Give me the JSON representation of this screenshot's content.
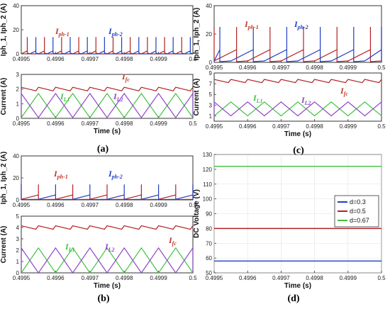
{
  "panel_labels": {
    "a": "(a)",
    "b": "(b)",
    "c": "(c)",
    "d": "(d)"
  },
  "colors": {
    "red": "#c0392b",
    "blue": "#1f3fbf",
    "green": "#3fc33f",
    "purple": "#8e44c8",
    "darkred": "#b22222"
  },
  "chart_data": [
    {
      "id": "a-top",
      "type": "line",
      "ylabel": "Iph_1, Iph_2 (A)",
      "xlabel": "",
      "xlim": [
        0.4995,
        0.5
      ],
      "ylim": [
        0,
        40
      ],
      "xticks": [
        "0.4995",
        "0.4996",
        "0.4997",
        "0.4998",
        "0.4999",
        "0.5"
      ],
      "yticks": [
        "0",
        "20",
        "40"
      ],
      "annotations": [
        {
          "main": "I",
          "sub": "ph-1",
          "color": "red"
        },
        {
          "main": "I",
          "sub": "ph-2",
          "color": "blue"
        }
      ],
      "series": [
        {
          "kind": "pulse",
          "color": "darkred",
          "period": 5e-05,
          "phase": 0.0,
          "base": 2.5,
          "spike": 14
        },
        {
          "kind": "pulse",
          "color": "blue",
          "period": 5e-05,
          "phase": 0.5,
          "base": 2.5,
          "spike": 14
        }
      ]
    },
    {
      "id": "a-bottom",
      "type": "line",
      "ylabel": "Current (A)",
      "xlabel": "Time (s)",
      "xlim": [
        0.4995,
        0.5
      ],
      "ylim": [
        0,
        3
      ],
      "xticks": [
        "0.4995",
        "0.4996",
        "0.4997",
        "0.4998",
        "0.4999",
        "0.5"
      ],
      "yticks": [
        "0",
        "1",
        "2",
        "3"
      ],
      "annotations": [
        {
          "main": "I",
          "sub": "fc",
          "color": "red"
        },
        {
          "main": "I",
          "sub": "L1",
          "color": "green"
        },
        {
          "main": "I",
          "sub": "L2",
          "color": "purple"
        }
      ],
      "series": [
        {
          "kind": "saw",
          "color": "darkred",
          "period": 5e-05,
          "mean": 2.0,
          "amp": 0.12
        },
        {
          "kind": "tri",
          "color": "green",
          "period": 0.0001,
          "phase": 0.0,
          "min": 0.05,
          "max": 1.7
        },
        {
          "kind": "tri",
          "color": "purple",
          "period": 0.0001,
          "phase": 0.5,
          "min": 0.05,
          "max": 1.7
        }
      ]
    },
    {
      "id": "c-top",
      "type": "line",
      "ylabel": "Iph_1, Iph_2 (A)",
      "xlabel": "",
      "xlim": [
        0.4995,
        0.5
      ],
      "ylim": [
        0,
        40
      ],
      "xticks": [
        "0.4995",
        "0.4996",
        "0.4997",
        "0.4998",
        "0.4999",
        "0.5"
      ],
      "yticks": [
        "0",
        "20",
        "40"
      ],
      "annotations": [
        {
          "main": "I",
          "sub": "ph-1",
          "color": "red"
        },
        {
          "main": "I",
          "sub": "ph-2",
          "color": "blue"
        }
      ],
      "series": [
        {
          "kind": "ramp",
          "color": "darkred",
          "period": 0.0001,
          "phase": 0.0,
          "low": 1,
          "high": 9,
          "duty": 0.67,
          "spike": 25
        },
        {
          "kind": "ramp",
          "color": "blue",
          "period": 0.0001,
          "phase": 0.5,
          "low": 1,
          "high": 9,
          "duty": 0.67,
          "spike": 25
        }
      ]
    },
    {
      "id": "c-bottom",
      "type": "line",
      "ylabel": "Current (A)",
      "xlabel": "Time (s)",
      "xlim": [
        0.4995,
        0.5
      ],
      "ylim": [
        0,
        9
      ],
      "xticks": [
        "0.4995",
        "0.4996",
        "0.4997",
        "0.4998",
        "0.4999",
        "0.5"
      ],
      "yticks": [
        "1",
        "3",
        "5",
        "7",
        "9"
      ],
      "annotations": [
        {
          "main": "I",
          "sub": "fc",
          "color": "red"
        },
        {
          "main": "I",
          "sub": "L1",
          "color": "green"
        },
        {
          "main": "I",
          "sub": "L2",
          "color": "purple"
        }
      ],
      "series": [
        {
          "kind": "saw",
          "color": "darkred",
          "period": 5e-05,
          "mean": 7.5,
          "amp": 0.3
        },
        {
          "kind": "tri",
          "color": "green",
          "period": 0.0001,
          "phase": 0.0,
          "min": 1.0,
          "max": 3.6
        },
        {
          "kind": "tri",
          "color": "purple",
          "period": 0.0001,
          "phase": 0.5,
          "min": 1.0,
          "max": 3.6
        }
      ]
    },
    {
      "id": "b-top",
      "type": "line",
      "ylabel": "Iph_1, Iph_2 (A)",
      "xlabel": "",
      "xlim": [
        0.4995,
        0.5
      ],
      "ylim": [
        0,
        40
      ],
      "xticks": [
        "0.4995",
        "0.4996",
        "0.4997",
        "0.4998",
        "0.4999",
        "0.5"
      ],
      "yticks": [
        "0",
        "20",
        "40"
      ],
      "annotations": [
        {
          "main": "I",
          "sub": "ph-1",
          "color": "red"
        },
        {
          "main": "I",
          "sub": "ph-2",
          "color": "blue"
        }
      ],
      "series": [
        {
          "kind": "ramp",
          "color": "darkred",
          "period": 0.0001,
          "phase": 0.0,
          "low": 0.5,
          "high": 4.5,
          "duty": 0.5,
          "spike": 14
        },
        {
          "kind": "ramp",
          "color": "blue",
          "period": 0.0001,
          "phase": 0.5,
          "low": 0.5,
          "high": 4.5,
          "duty": 0.5,
          "spike": 14
        }
      ]
    },
    {
      "id": "b-bottom",
      "type": "line",
      "ylabel": "Current (A)",
      "xlabel": "Time (s)",
      "xlim": [
        0.4995,
        0.5
      ],
      "ylim": [
        0,
        5
      ],
      "xticks": [
        "0.4995",
        "0.4996",
        "0.4997",
        "0.4998",
        "0.4999",
        "0.5"
      ],
      "yticks": [
        "0",
        "1",
        "2",
        "3",
        "4",
        "5"
      ],
      "annotations": [
        {
          "main": "I",
          "sub": "fc",
          "color": "red"
        },
        {
          "main": "I",
          "sub": "L1",
          "color": "green"
        },
        {
          "main": "I",
          "sub": "L2",
          "color": "purple"
        }
      ],
      "series": [
        {
          "kind": "saw",
          "color": "darkred",
          "period": 5e-05,
          "mean": 4.0,
          "amp": 0.15
        },
        {
          "kind": "tri",
          "color": "green",
          "period": 0.0001,
          "phase": 0.0,
          "min": 0.0,
          "max": 2.2
        },
        {
          "kind": "tri",
          "color": "purple",
          "period": 0.0001,
          "phase": 0.5,
          "min": 0.0,
          "max": 2.2
        }
      ]
    },
    {
      "id": "d",
      "type": "line",
      "ylabel": "DC Voltage (V)",
      "xlabel": "Time (s)",
      "xlim": [
        0.4995,
        0.5
      ],
      "ylim": [
        50,
        130
      ],
      "xticks": [
        "0.4995",
        "0.4996",
        "0.4997",
        "0.4998",
        "0.4999",
        "0.5"
      ],
      "yticks": [
        "50",
        "60",
        "70",
        "80",
        "90",
        "100",
        "110",
        "120",
        "130"
      ],
      "grid": true,
      "legend": "right",
      "series": [
        {
          "kind": "flat",
          "name": "d=0.3",
          "color": "blue",
          "value": 58
        },
        {
          "kind": "flat",
          "name": "d=0.5",
          "color": "darkred",
          "value": 80
        },
        {
          "kind": "flat",
          "name": "d=0.67",
          "color": "green",
          "value": 122
        }
      ]
    }
  ]
}
